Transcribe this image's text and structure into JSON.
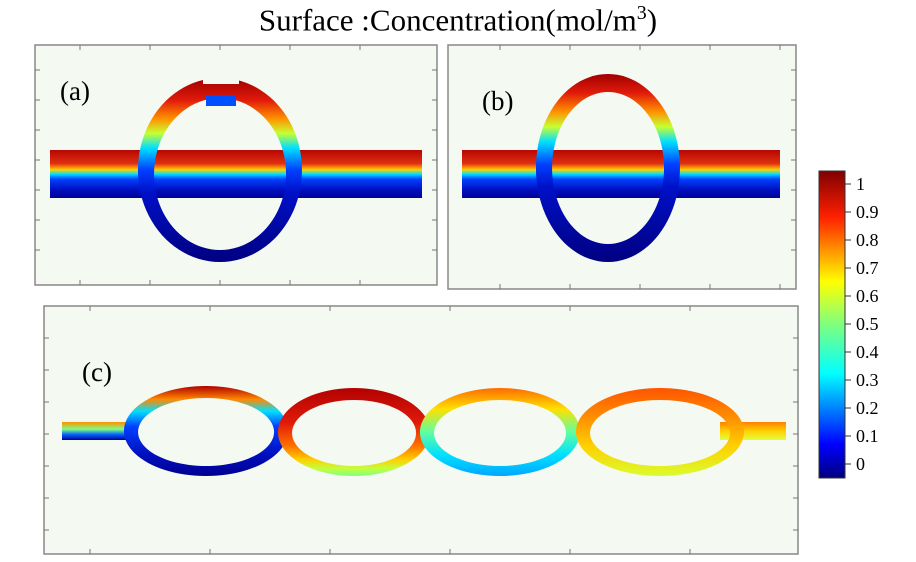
{
  "figure": {
    "title_main": "Surface :Concentration(mol/m",
    "title_sup": "3",
    "title_close": ")"
  },
  "panels": [
    {
      "id": "a",
      "label": "(a)"
    },
    {
      "id": "b",
      "label": "(b)"
    },
    {
      "id": "c",
      "label": "(c)"
    }
  ],
  "colorbar": {
    "ticks": [
      "1",
      "0.9",
      "0.8",
      "0.7",
      "0.6",
      "0.5",
      "0.4",
      "0.3",
      "0.2",
      "0.1",
      "0"
    ],
    "colors": [
      "#00007f",
      "#0000ff",
      "#007fff",
      "#00ffff",
      "#7fff7f",
      "#ffff00",
      "#ff7f00",
      "#ff0000",
      "#7f0000"
    ]
  }
}
